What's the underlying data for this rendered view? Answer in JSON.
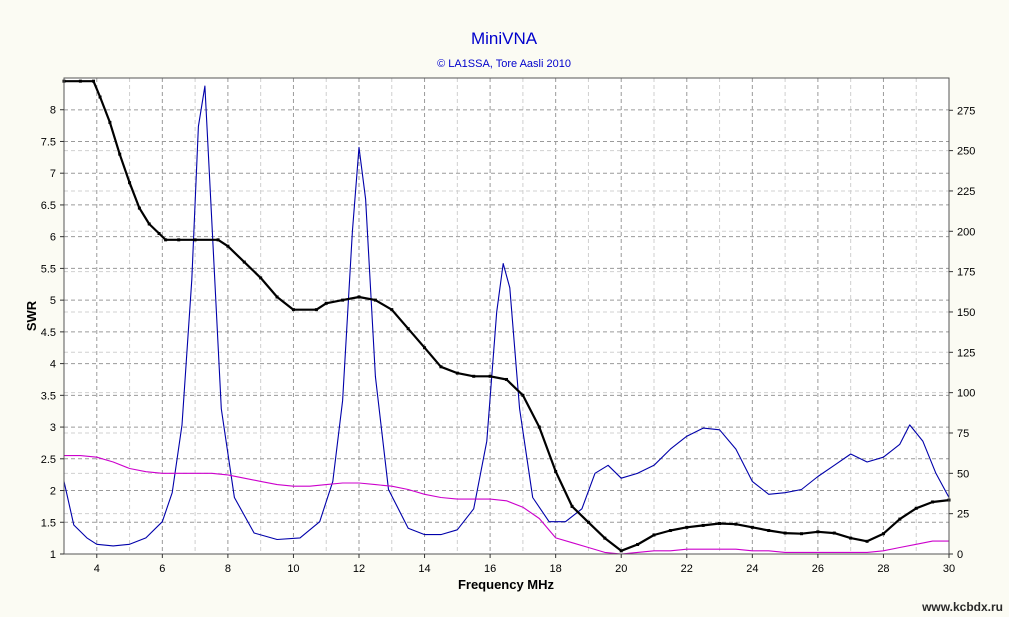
{
  "chart_data": {
    "type": "line",
    "title": "MiniVNA",
    "subtitle": "© LA1SSA, Tore Aasli 2010",
    "xlabel": "Frequency MHz",
    "ylabel": "SWR",
    "xlim": [
      3,
      30
    ],
    "ylim": [
      1,
      8.5
    ],
    "y2lim": [
      0,
      295
    ],
    "x_ticks": [
      4,
      6,
      8,
      10,
      12,
      14,
      16,
      18,
      20,
      22,
      24,
      26,
      28,
      30
    ],
    "y_ticks": [
      1,
      1.5,
      2,
      2.5,
      3,
      3.5,
      4,
      4.5,
      5,
      5.5,
      6,
      6.5,
      7,
      7.5,
      8
    ],
    "y2_ticks": [
      0,
      25,
      50,
      75,
      100,
      125,
      150,
      175,
      200,
      225,
      250,
      275
    ],
    "grid": true,
    "series": [
      {
        "color": "#000000",
        "axis": "left",
        "x": [
          3,
          3.5,
          3.9,
          4.1,
          4.4,
          4.7,
          5.0,
          5.3,
          5.6,
          5.9,
          6.1,
          6.5,
          7.0,
          7.7,
          8.0,
          8.5,
          9.0,
          9.5,
          10.0,
          10.7,
          11.0,
          11.5,
          12.0,
          12.5,
          13.0,
          13.5,
          14.0,
          14.5,
          15.0,
          15.5,
          16.0,
          16.5,
          17.0,
          17.5,
          18.0,
          18.5,
          19.0,
          19.5,
          20.0,
          20.5,
          21.0,
          21.5,
          22.0,
          22.5,
          23.0,
          23.5,
          24.0,
          24.5,
          25.0,
          25.5,
          26.0,
          26.5,
          27.0,
          27.5,
          28.0,
          28.5,
          29.0,
          29.5,
          30.0
        ],
        "y": [
          8.45,
          8.45,
          8.45,
          8.2,
          7.8,
          7.3,
          6.85,
          6.45,
          6.2,
          6.05,
          5.95,
          5.95,
          5.95,
          5.95,
          5.85,
          5.6,
          5.35,
          5.05,
          4.85,
          4.85,
          4.95,
          5.0,
          5.05,
          5.0,
          4.85,
          4.55,
          4.25,
          3.95,
          3.85,
          3.8,
          3.8,
          3.75,
          3.5,
          3.0,
          2.3,
          1.75,
          1.5,
          1.25,
          1.05,
          1.15,
          1.3,
          1.37,
          1.42,
          1.45,
          1.48,
          1.47,
          1.42,
          1.37,
          1.33,
          1.32,
          1.35,
          1.33,
          1.25,
          1.2,
          1.32,
          1.55,
          1.72,
          1.82,
          1.85
        ]
      },
      {
        "color": "#0000aa",
        "axis": "right",
        "x": [
          3,
          3.3,
          3.7,
          4.0,
          4.5,
          5.0,
          5.5,
          6.0,
          6.3,
          6.6,
          6.9,
          7.1,
          7.3,
          7.5,
          7.8,
          8.2,
          8.8,
          9.5,
          10.2,
          10.8,
          11.2,
          11.5,
          11.8,
          12.0,
          12.2,
          12.5,
          12.9,
          13.5,
          14.0,
          14.5,
          15.0,
          15.5,
          15.9,
          16.2,
          16.4,
          16.6,
          16.9,
          17.3,
          17.8,
          18.3,
          18.8,
          19.2,
          19.6,
          20.0,
          20.5,
          21.0,
          21.5,
          22.0,
          22.5,
          23.0,
          23.5,
          24.0,
          24.5,
          25.0,
          25.5,
          26.0,
          26.5,
          27.0,
          27.5,
          28.0,
          28.5,
          28.8,
          29.2,
          29.6,
          30.0
        ],
        "y": [
          45,
          18,
          10,
          6,
          5,
          6,
          10,
          20,
          38,
          80,
          170,
          265,
          290,
          210,
          90,
          35,
          13,
          9,
          10,
          20,
          45,
          95,
          200,
          252,
          220,
          110,
          40,
          16,
          12,
          12,
          15,
          28,
          70,
          150,
          180,
          165,
          90,
          35,
          20,
          20,
          28,
          50,
          55,
          47,
          50,
          55,
          65,
          73,
          78,
          77,
          65,
          45,
          37,
          38,
          40,
          48,
          55,
          62,
          57,
          60,
          68,
          80,
          70,
          50,
          35
        ]
      },
      {
        "color": "#cc00cc",
        "axis": "right",
        "x": [
          3,
          3.5,
          4.0,
          4.5,
          5.0,
          5.5,
          6.0,
          6.5,
          7.0,
          7.5,
          8.0,
          8.5,
          9.0,
          9.5,
          10.0,
          10.5,
          11.0,
          11.5,
          12.0,
          12.5,
          13.0,
          13.5,
          14.0,
          14.5,
          15.0,
          15.5,
          16.0,
          16.5,
          17.0,
          17.5,
          18.0,
          18.5,
          19.0,
          19.5,
          20.0,
          20.5,
          21.0,
          21.5,
          22.0,
          22.5,
          23.0,
          23.5,
          24.0,
          24.5,
          25.0,
          25.5,
          26.0,
          26.5,
          27.0,
          27.5,
          28.0,
          28.5,
          29.0,
          29.5,
          30.0
        ],
        "y": [
          61,
          61,
          60,
          57,
          53,
          51,
          50,
          50,
          50,
          50,
          49,
          47,
          45,
          43,
          42,
          42,
          43,
          44,
          44,
          43,
          42,
          40,
          37,
          35,
          34,
          34,
          34,
          33,
          29,
          22,
          10,
          7,
          4,
          1,
          0,
          1,
          2,
          2,
          3,
          3,
          3,
          3,
          2,
          2,
          1,
          1,
          1,
          1,
          1,
          1,
          2,
          4,
          6,
          8,
          8
        ]
      }
    ]
  },
  "watermark": "www.kcbdx.ru"
}
